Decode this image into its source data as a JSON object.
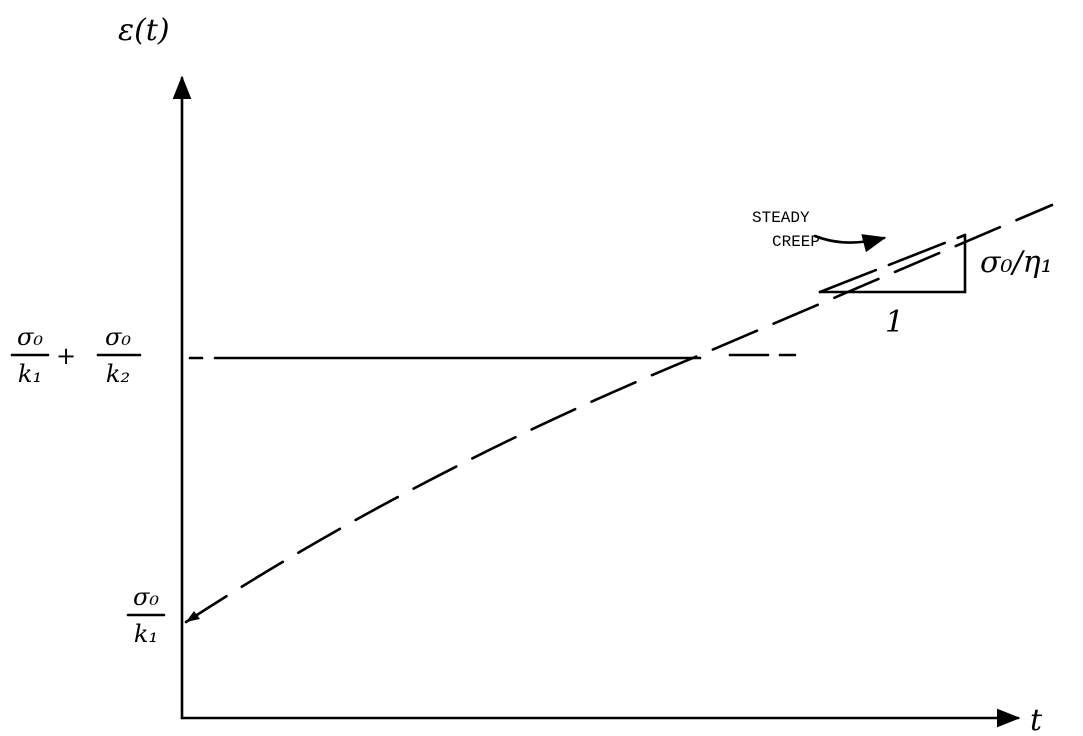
{
  "axes": {
    "y_label": "ε(t)",
    "x_label": "t"
  },
  "levels": {
    "upper": {
      "term1": {
        "numerator": "σ₀",
        "denominator": "k₁"
      },
      "operator": "+",
      "term2": {
        "numerator": "σ₀",
        "denominator": "k₂"
      }
    },
    "lower": {
      "numerator": "σ₀",
      "denominator": "k₁"
    }
  },
  "annotation": {
    "lines": [
      "STEADY",
      "CREEP"
    ]
  },
  "slope": {
    "rise": "σ₀/η₁",
    "run": "1"
  }
}
